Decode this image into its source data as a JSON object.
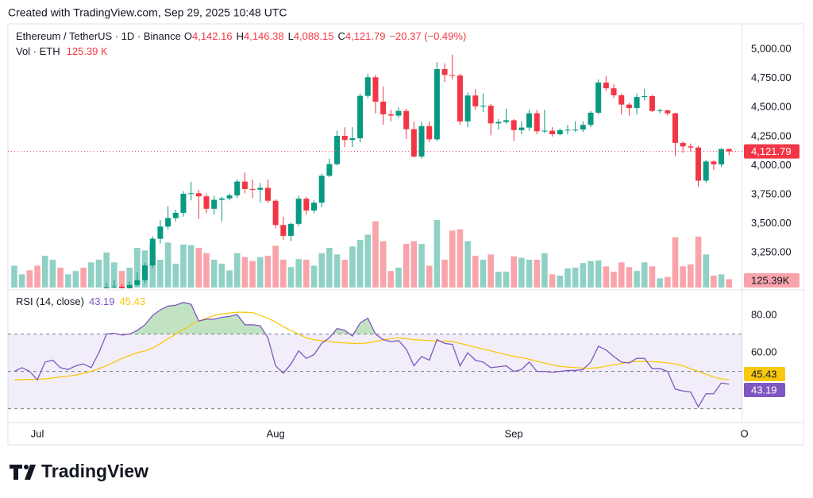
{
  "header": "Created with TradingView.com, Sep 29, 2025 10:48 UTC",
  "footer": {
    "brand": "TradingView"
  },
  "chart_data": [
    {
      "type": "candlestick",
      "title": "Ethereum / TetherUS · 1D · Binance",
      "categories": [
        null,
        null,
        null,
        "Jul",
        null,
        null,
        null,
        null,
        null,
        null,
        null,
        null,
        null,
        null,
        null,
        null,
        null,
        null,
        null,
        null,
        null,
        null,
        null,
        null,
        null,
        null,
        null,
        null,
        null,
        null,
        null,
        null,
        null,
        null,
        "Aug",
        null,
        null,
        null,
        null,
        null,
        null,
        null,
        null,
        null,
        null,
        null,
        null,
        null,
        null,
        null,
        null,
        null,
        null,
        null,
        null,
        null,
        null,
        null,
        null,
        null,
        null,
        null,
        null,
        null,
        null,
        "Sep",
        null,
        null,
        null,
        null,
        null,
        null,
        null,
        null,
        null,
        null,
        null,
        null,
        null,
        null,
        null,
        null,
        null,
        null,
        null,
        null,
        null,
        null,
        null,
        null,
        null,
        null,
        null,
        null,
        null,
        "O"
      ],
      "open": [
        2424,
        2437,
        2502,
        2486,
        2406,
        2570,
        2592,
        2510,
        2514,
        2570,
        2543,
        2615,
        2770,
        2950,
        2958,
        2943,
        2972,
        3013,
        3140,
        3370,
        3475,
        3548,
        3593,
        3757,
        3762,
        3735,
        3628,
        3705,
        3717,
        3743,
        3862,
        3798,
        3792,
        3808,
        3697,
        3488,
        3395,
        3498,
        3715,
        3613,
        3680,
        3912,
        4012,
        4256,
        4220,
        4235,
        4600,
        4760,
        4550,
        4441,
        4430,
        4470,
        4313,
        4077,
        4340,
        4226,
        4830,
        4780,
        4775,
        4380,
        4603,
        4510,
        4515,
        4363,
        4375,
        4390,
        4305,
        4327,
        4450,
        4295,
        4300,
        4270,
        4305,
        4308,
        4310,
        4350,
        4455,
        4715,
        4665,
        4605,
        4525,
        4495,
        4590,
        4598,
        4470,
        4475,
        4450,
        4195,
        4165,
        4155,
        3870,
        4035,
        4010,
        4142.16,
        null,
        null
      ],
      "high": [
        2445,
        2515,
        2525,
        2495,
        2585,
        2635,
        2600,
        2520,
        2590,
        2590,
        2630,
        2790,
        2990,
        3020,
        2980,
        3000,
        3080,
        3160,
        3390,
        3530,
        3650,
        3620,
        3780,
        3860,
        3790,
        3760,
        3740,
        3730,
        3760,
        3880,
        3940,
        3880,
        3850,
        3880,
        3710,
        3560,
        3510,
        3740,
        3730,
        3700,
        3930,
        4060,
        4300,
        4330,
        4330,
        4620,
        4790,
        4780,
        4680,
        4480,
        4500,
        4490,
        4380,
        4380,
        4380,
        4890,
        4880,
        4955,
        4790,
        4630,
        4660,
        4620,
        4530,
        4400,
        4490,
        4400,
        4380,
        4480,
        4480,
        4480,
        4330,
        4320,
        4350,
        4380,
        4380,
        4470,
        4740,
        4770,
        4700,
        4620,
        4540,
        4620,
        4660,
        4610,
        4490,
        4480,
        4455,
        4210,
        4190,
        4170,
        4050,
        4045,
        4150,
        4146.38,
        null,
        null
      ],
      "low": [
        2410,
        2425,
        2465,
        2395,
        2385,
        2555,
        2480,
        2485,
        2490,
        2520,
        2520,
        2600,
        2740,
        2930,
        2900,
        2935,
        2960,
        2990,
        3120,
        3330,
        3450,
        3520,
        3560,
        3700,
        3540,
        3590,
        3580,
        3520,
        3700,
        3720,
        3760,
        3720,
        3680,
        3680,
        3460,
        3360,
        3350,
        3480,
        3580,
        3590,
        3640,
        3900,
        4000,
        4160,
        4160,
        4200,
        4580,
        4450,
        4350,
        4380,
        4410,
        4230,
        4070,
        4060,
        4200,
        4210,
        4720,
        4740,
        4350,
        4330,
        4480,
        4460,
        4260,
        4310,
        4360,
        4210,
        4270,
        4300,
        4270,
        4280,
        4250,
        4260,
        4270,
        4290,
        4290,
        4330,
        4440,
        4640,
        4580,
        4440,
        4430,
        4440,
        4560,
        4460,
        4450,
        4430,
        4080,
        4110,
        4120,
        3820,
        3850,
        3960,
        3990,
        4088.15,
        null,
        null
      ],
      "close": [
        2437,
        2502,
        2486,
        2406,
        2570,
        2592,
        2510,
        2514,
        2570,
        2543,
        2615,
        2770,
        2950,
        2958,
        2943,
        2972,
        3013,
        3140,
        3370,
        3475,
        3548,
        3593,
        3757,
        3762,
        3735,
        3628,
        3705,
        3717,
        3743,
        3862,
        3798,
        3792,
        3808,
        3697,
        3488,
        3395,
        3498,
        3715,
        3613,
        3680,
        3912,
        4012,
        4256,
        4220,
        4235,
        4600,
        4760,
        4550,
        4441,
        4430,
        4470,
        4313,
        4077,
        4340,
        4226,
        4830,
        4780,
        4775,
        4380,
        4603,
        4510,
        4515,
        4363,
        4375,
        4390,
        4305,
        4327,
        4450,
        4295,
        4300,
        4270,
        4305,
        4308,
        4310,
        4350,
        4455,
        4715,
        4665,
        4605,
        4525,
        4495,
        4590,
        4598,
        4470,
        4475,
        4450,
        4195,
        4165,
        4155,
        3870,
        4035,
        4010,
        4142,
        4121.79,
        null,
        null
      ],
      "up_color": "#089981",
      "down_color": "#f23645",
      "legend": [
        {
          "key": "O",
          "label": "4,142.16"
        },
        {
          "key": "H",
          "label": "4,146.38"
        },
        {
          "key": "L",
          "label": "4,088.15"
        },
        {
          "key": "C",
          "label": "4,121.79"
        }
      ],
      "change_label": "−20.37 (−0.49%)",
      "last_label": "4,121.79",
      "ylim": [
        2950,
        5220
      ],
      "yticks": [
        {
          "value": 3250,
          "label": "3,250.00"
        },
        {
          "value": 3500,
          "label": "3,500.00"
        },
        {
          "value": 3750,
          "label": "3,750.00"
        },
        {
          "value": 4000,
          "label": "4,000.00"
        },
        {
          "value": 4250,
          "label": "4,250.00"
        },
        {
          "value": 4500,
          "label": "4,500.00"
        },
        {
          "value": 4750,
          "label": "4,750.00"
        },
        {
          "value": 5000,
          "label": "5,000.00"
        }
      ],
      "grid": false,
      "volume": {
        "name": "Vol · ETH",
        "values": [
          330,
          200,
          260,
          330,
          480,
          420,
          300,
          200,
          250,
          300,
          380,
          420,
          530,
          380,
          250,
          300,
          600,
          560,
          650,
          420,
          680,
          360,
          650,
          640,
          600,
          520,
          420,
          360,
          260,
          520,
          460,
          400,
          460,
          480,
          630,
          420,
          310,
          430,
          420,
          330,
          520,
          600,
          500,
          420,
          620,
          720,
          800,
          1000,
          700,
          250,
          300,
          660,
          700,
          660,
          330,
          1020,
          420,
          860,
          880,
          700,
          480,
          420,
          500,
          240,
          240,
          470,
          450,
          420,
          420,
          520,
          200,
          180,
          290,
          300,
          370,
          400,
          410,
          320,
          240,
          380,
          310,
          250,
          380,
          320,
          140,
          160,
          760,
          320,
          350,
          770,
          500,
          180,
          200,
          125.39,
          null,
          null
        ],
        "value_label": "125.39 K",
        "axis_label": "125.39K"
      }
    },
    {
      "type": "line",
      "title": "RSI (14, close)",
      "ylim": [
        23,
        92
      ],
      "yticks": [
        {
          "value": 40,
          "label": "40.00"
        },
        {
          "value": 60,
          "label": "60.00"
        },
        {
          "value": 80,
          "label": "80.00"
        }
      ],
      "levels": [
        30,
        50,
        70
      ],
      "band_color": "#7e57c2",
      "overbought_color": "#4caf50",
      "series": [
        {
          "color": "#7e57c2",
          "last_label": "43.19",
          "values": [
            50,
            52,
            50,
            45.5,
            55,
            56,
            52,
            51,
            53,
            54,
            52,
            60,
            70,
            70.5,
            69.5,
            70,
            72,
            75,
            80,
            83,
            85,
            85.5,
            87,
            86,
            77,
            78,
            78,
            79,
            79.5,
            80.5,
            75,
            75,
            74.5,
            68,
            53,
            49,
            54,
            61,
            57,
            59,
            65,
            68,
            73,
            72,
            69,
            76,
            78.5,
            70,
            67,
            66,
            66.5,
            62,
            53,
            58,
            56,
            67,
            65,
            64.5,
            53,
            60,
            56,
            55,
            52,
            52.5,
            53,
            50,
            51,
            55,
            50,
            50,
            49.5,
            50,
            50.5,
            50.5,
            51,
            55,
            63.5,
            61.5,
            58,
            55,
            54.5,
            57,
            57,
            51.5,
            51.5,
            50,
            40.5,
            39.5,
            39,
            31,
            38,
            38,
            43.8,
            43.19,
            null,
            null
          ]
        },
        {
          "color": "#f9c80e",
          "last_label": "45.43",
          "values": [
            45.5,
            45.6,
            45.7,
            45.8,
            46,
            46.5,
            47,
            47.5,
            48,
            49,
            50,
            51.5,
            53,
            55,
            57,
            58.5,
            60,
            61,
            62.5,
            65,
            67.5,
            70,
            72.5,
            75,
            77,
            78.5,
            80,
            80.8,
            81.3,
            81.7,
            81.7,
            81.5,
            80,
            78.5,
            76.5,
            74,
            72,
            70,
            68,
            67,
            66.5,
            66,
            65.5,
            65.3,
            65,
            65,
            65.3,
            66,
            67,
            67.5,
            68,
            67.5,
            67,
            66.8,
            66.5,
            66.3,
            66.2,
            66,
            65,
            64,
            63,
            62,
            61,
            60,
            59,
            58,
            57.4,
            56.5,
            55.5,
            54.5,
            53.5,
            52.8,
            52.3,
            52,
            51.8,
            51.7,
            52,
            52.8,
            53.5,
            54.2,
            55,
            55.3,
            55.3,
            55.2,
            55,
            54.6,
            54,
            53,
            51.5,
            50,
            48.5,
            47,
            46,
            45.43,
            null,
            null
          ]
        }
      ]
    }
  ]
}
